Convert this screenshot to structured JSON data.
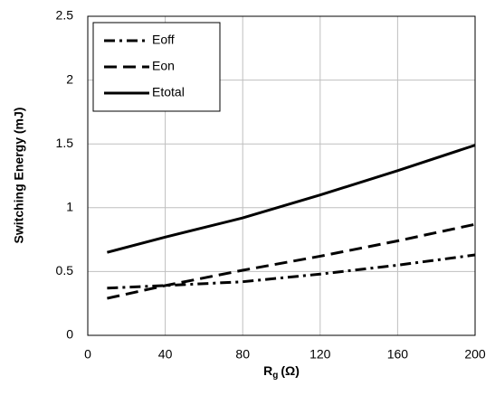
{
  "chart_data": {
    "type": "line",
    "y_label": "Switching Energy (mJ)",
    "x_label": {
      "main": "R",
      "sub": "g",
      "unit": "(Ω)"
    },
    "x": [
      10,
      40,
      80,
      120,
      160,
      200
    ],
    "series": [
      {
        "name": "Eoff",
        "color": "#000000",
        "dash": "dash-dot",
        "values": [
          0.37,
          0.39,
          0.42,
          0.48,
          0.55,
          0.63
        ]
      },
      {
        "name": "Eon",
        "color": "#000000",
        "dash": "dash",
        "values": [
          0.29,
          0.39,
          0.51,
          0.62,
          0.74,
          0.87
        ]
      },
      {
        "name": "Etotal",
        "color": "#000000",
        "dash": "solid",
        "values": [
          0.65,
          0.77,
          0.92,
          1.1,
          1.29,
          1.49
        ]
      }
    ],
    "xlim": [
      0,
      200
    ],
    "xticks": [
      0,
      40,
      80,
      120,
      160,
      200
    ],
    "ylim": [
      0,
      2.5
    ],
    "yticks": [
      0,
      0.5,
      1,
      1.5,
      2,
      2.5
    ],
    "grid": true,
    "legend": "upper left"
  }
}
